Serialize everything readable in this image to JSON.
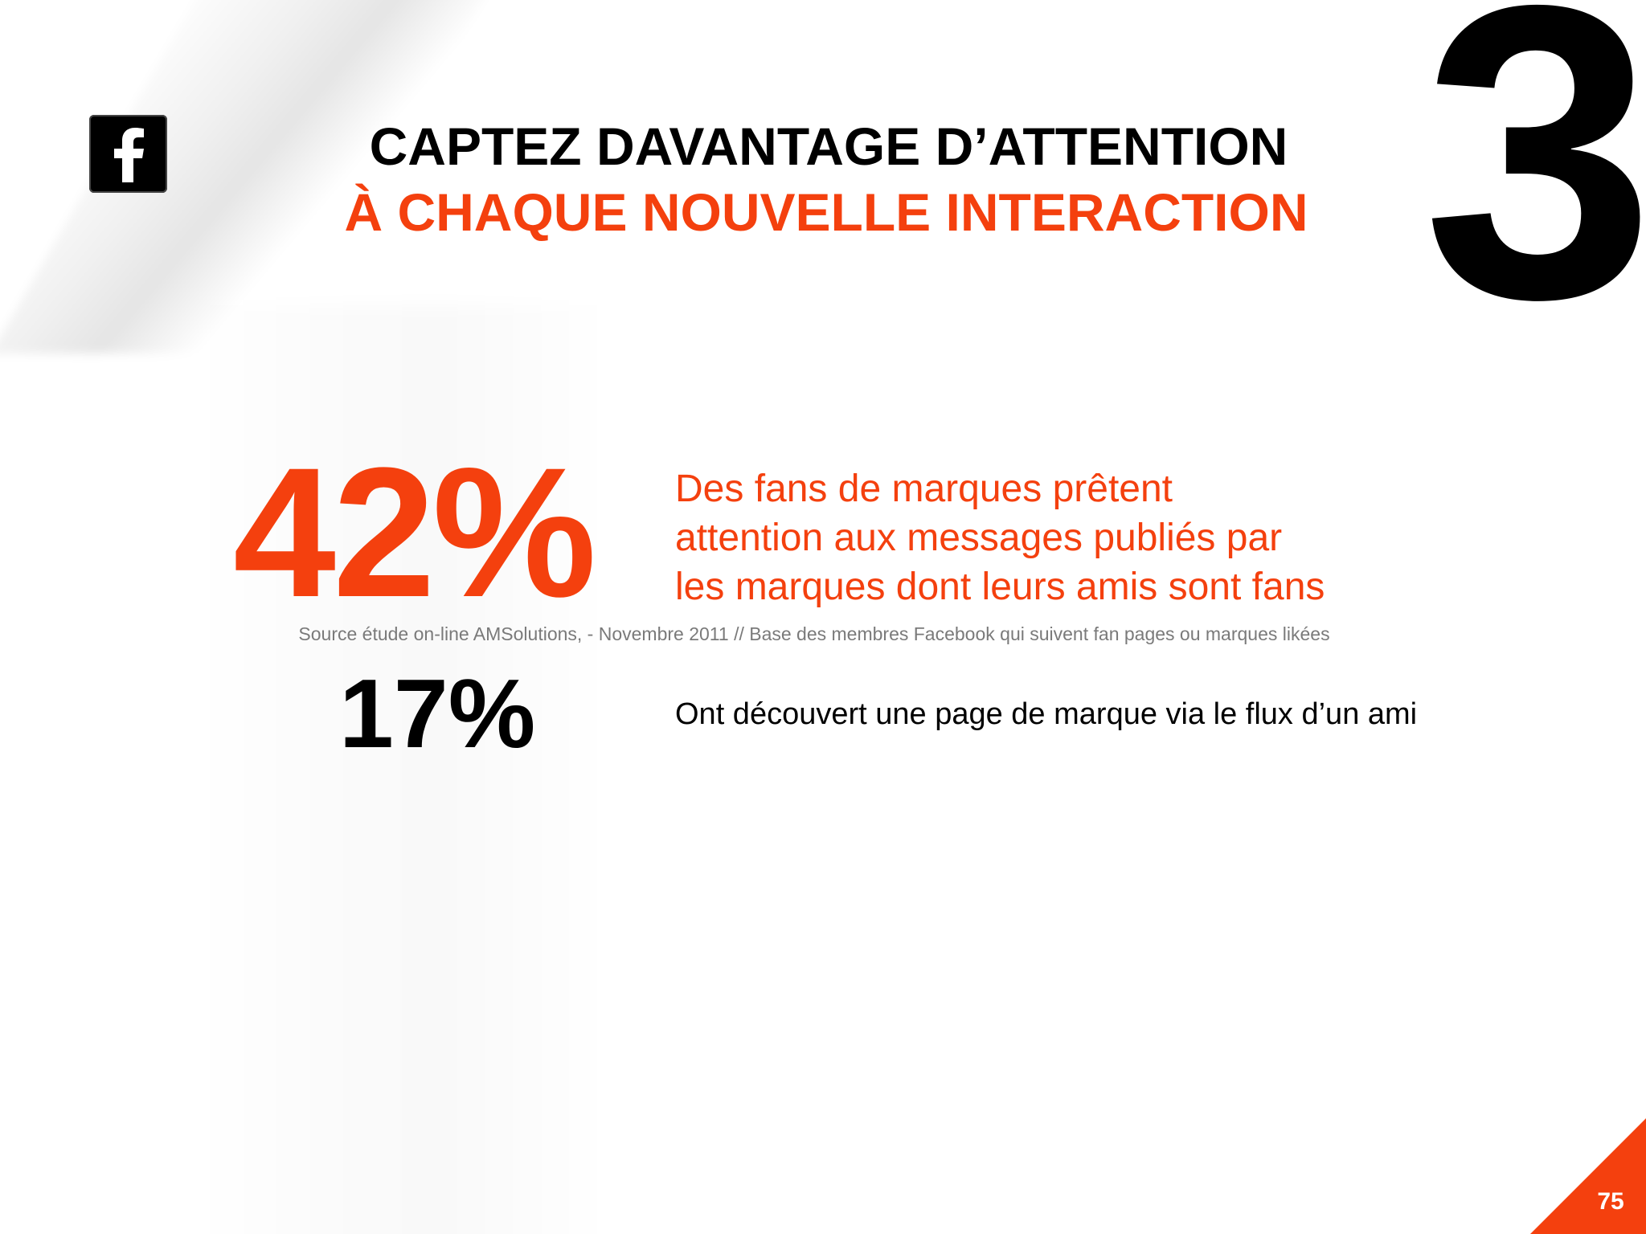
{
  "slide": {
    "title_line1": "CAPTEZ DAVANTAGE D’ATTENTION",
    "title_line2": "À CHAQUE NOUVELLE INTERACTION",
    "section_number": "3",
    "logo_icon": "facebook-icon",
    "accent_color": "#f4400e",
    "stats": [
      {
        "value": "42%",
        "description_lines": [
          "Des fans de marques prêtent",
          "attention aux messages publiés par",
          "les marques dont leurs amis sont fans"
        ]
      },
      {
        "value": "17%",
        "description": "Ont découvert une page de marque via le flux d’un ami"
      }
    ],
    "source": "Source étude on-line AMSolutions, - Novembre 2011 // Base des membres Facebook qui suivent fan pages ou marques likées",
    "page_number": "75"
  }
}
